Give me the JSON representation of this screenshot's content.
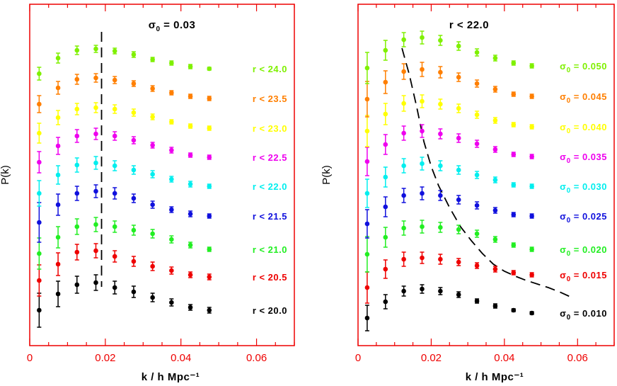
{
  "chart_data": [
    {
      "type": "scatter",
      "title": "σ₀ = 0.03",
      "xlabel": "k / h Mpc⁻¹",
      "ylabel": "P(k)",
      "xlim": [
        0,
        0.07
      ],
      "x_ticks": [
        "0",
        "0.02",
        "0.04",
        "0.06"
      ],
      "y_tick_labels_shown": false,
      "y_units": "arbitrary (curves offset vertically)",
      "x": [
        0.0025,
        0.0075,
        0.0125,
        0.0175,
        0.0225,
        0.0275,
        0.0325,
        0.0375,
        0.0425,
        0.0475
      ],
      "vertical_line": {
        "x": 0.019,
        "style": "dashed",
        "color": "#000000"
      },
      "series": [
        {
          "name": "r < 20.0",
          "color": "#000000",
          "y": [
            438,
            415,
            402,
            399,
            406,
            412,
            420,
            427,
            434,
            438
          ],
          "err": [
            24,
            18,
            12,
            11,
            9,
            8,
            6,
            5,
            4,
            4
          ]
        },
        {
          "name": "r < 20.5",
          "color": "#ee0000",
          "y": [
            396,
            373,
            356,
            354,
            362,
            369,
            376,
            382,
            388,
            391
          ],
          "err": [
            22,
            16,
            11,
            10,
            8,
            7,
            6,
            5,
            4,
            4
          ]
        },
        {
          "name": "r < 21.0",
          "color": "#22ee22",
          "y": [
            358,
            335,
            320,
            317,
            320,
            325,
            330,
            338,
            346,
            352
          ],
          "err": [
            22,
            15,
            11,
            10,
            8,
            7,
            6,
            5,
            4,
            3
          ]
        },
        {
          "name": "r < 21.5",
          "color": "#1010dd",
          "y": [
            314,
            289,
            273,
            270,
            273,
            280,
            289,
            296,
            302,
            305
          ],
          "err": [
            28,
            15,
            10,
            9,
            8,
            6,
            5,
            4,
            4,
            3
          ]
        },
        {
          "name": "r < 22.0",
          "color": "#00eeee",
          "y": [
            273,
            247,
            233,
            230,
            234,
            240,
            246,
            253,
            260,
            263
          ],
          "err": [
            18,
            13,
            10,
            9,
            7,
            6,
            5,
            4,
            4,
            3
          ]
        },
        {
          "name": "r < 22.5",
          "color": "#ee00ee",
          "y": [
            229,
            206,
            192,
            189,
            192,
            198,
            205,
            212,
            219,
            222
          ],
          "err": [
            15,
            12,
            9,
            8,
            6,
            5,
            4,
            4,
            3,
            3
          ]
        },
        {
          "name": "r < 23.0",
          "color": "#ffff00",
          "y": [
            188,
            166,
            154,
            152,
            154,
            159,
            165,
            172,
            178,
            181
          ],
          "err": [
            14,
            10,
            8,
            7,
            6,
            5,
            4,
            3,
            3,
            3
          ]
        },
        {
          "name": "r < 23.5",
          "color": "#ff7f00",
          "y": [
            147,
            124,
            112,
            110,
            113,
            118,
            125,
            131,
            136,
            139
          ],
          "err": [
            12,
            9,
            7,
            6,
            5,
            4,
            4,
            3,
            3,
            3
          ]
        },
        {
          "name": "r < 24.0",
          "color": "#7ff000",
          "y": [
            104,
            82,
            71,
            69,
            72,
            77,
            84,
            89,
            94,
            97
          ],
          "err": [
            9,
            7,
            6,
            5,
            4,
            4,
            3,
            3,
            3,
            2
          ]
        }
      ]
    },
    {
      "type": "scatter",
      "title": "r < 22.0",
      "xlabel": "k / h Mpc⁻¹",
      "ylabel": "P(k)",
      "xlim": [
        0,
        0.07
      ],
      "x_ticks": [
        "0",
        "0.02",
        "0.04",
        "0.06"
      ],
      "y_tick_labels_shown": false,
      "y_units": "arbitrary (curves offset vertically)",
      "x": [
        0.0025,
        0.0075,
        0.0125,
        0.0175,
        0.0225,
        0.0275,
        0.0325,
        0.0375,
        0.0425,
        0.0475
      ],
      "dashed_curve": {
        "color": "#000000",
        "x": [
          0.012,
          0.014,
          0.016,
          0.018,
          0.02,
          0.022,
          0.025,
          0.028,
          0.031,
          0.034,
          0.037,
          0.04,
          0.043,
          0.046,
          0.049,
          0.052,
          0.055,
          0.058
        ],
        "y": [
          68,
          105,
          150,
          200,
          235,
          262,
          293,
          320,
          340,
          358,
          373,
          383,
          390,
          396,
          401,
          406,
          412,
          419
        ]
      },
      "series": [
        {
          "name": "σ₀ = 0.010",
          "color": "#000000",
          "y": [
            449,
            426,
            411,
            408,
            411,
            416,
            425,
            432,
            438,
            442
          ],
          "err": [
            18,
            10,
            7,
            6,
            5,
            4,
            3,
            3,
            2,
            2
          ]
        },
        {
          "name": "σ₀ = 0.015",
          "color": "#ee0000",
          "y": [
            406,
            380,
            366,
            364,
            366,
            370,
            375,
            380,
            385,
            388
          ],
          "err": [
            22,
            13,
            10,
            8,
            7,
            5,
            4,
            4,
            3,
            3
          ]
        },
        {
          "name": "σ₀ = 0.020",
          "color": "#22ee22",
          "y": [
            359,
            335,
            322,
            320,
            321,
            324,
            330,
            338,
            346,
            352
          ],
          "err": [
            25,
            14,
            10,
            9,
            7,
            6,
            5,
            4,
            3,
            3
          ]
        },
        {
          "name": "σ₀ = 0.025",
          "color": "#1010dd",
          "y": [
            316,
            292,
            276,
            273,
            276,
            282,
            290,
            297,
            303,
            305
          ],
          "err": [
            20,
            14,
            10,
            9,
            7,
            6,
            5,
            4,
            3,
            3
          ]
        },
        {
          "name": "σ₀ = 0.030",
          "color": "#00eeee",
          "y": [
            273,
            250,
            234,
            231,
            234,
            240,
            247,
            254,
            261,
            263
          ],
          "err": [
            20,
            14,
            10,
            9,
            7,
            6,
            5,
            4,
            3,
            3
          ]
        },
        {
          "name": "σ₀ = 0.035",
          "color": "#ee00ee",
          "y": [
            228,
            204,
            188,
            185,
            189,
            195,
            203,
            211,
            218,
            221
          ],
          "err": [
            20,
            14,
            10,
            9,
            7,
            6,
            5,
            4,
            3,
            3
          ]
        },
        {
          "name": "σ₀ = 0.040",
          "color": "#ffff00",
          "y": [
            185,
            161,
            146,
            143,
            147,
            153,
            162,
            170,
            176,
            179
          ],
          "err": [
            22,
            15,
            11,
            9,
            7,
            6,
            5,
            4,
            3,
            3
          ]
        },
        {
          "name": "σ₀ = 0.045",
          "color": "#ff7f00",
          "y": [
            140,
            116,
            101,
            98,
            102,
            109,
            118,
            126,
            133,
            136
          ],
          "err": [
            25,
            16,
            11,
            10,
            8,
            6,
            5,
            4,
            3,
            3
          ]
        },
        {
          "name": "σ₀ = 0.050",
          "color": "#7ff000",
          "y": [
            96,
            71,
            56,
            53,
            57,
            65,
            74,
            82,
            89,
            93
          ],
          "err": [
            22,
            14,
            10,
            9,
            7,
            6,
            5,
            4,
            3,
            3
          ]
        }
      ]
    }
  ]
}
